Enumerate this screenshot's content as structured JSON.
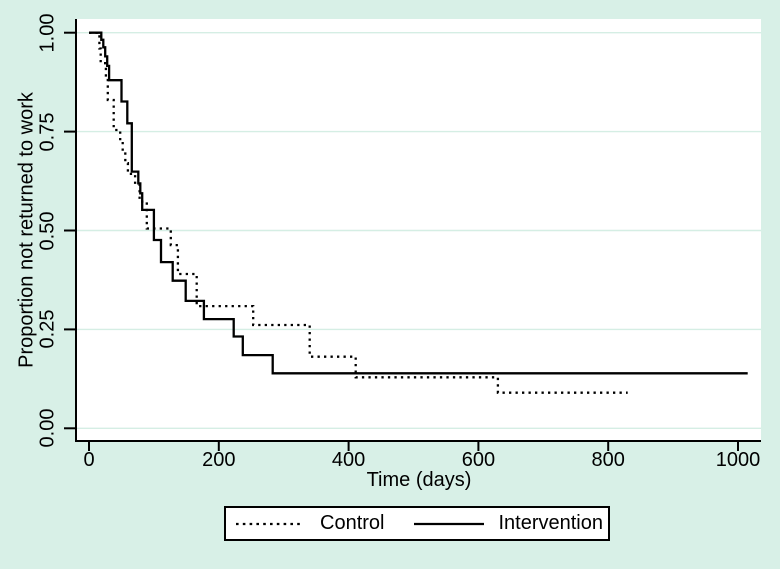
{
  "figure": {
    "background_color": "#d8f0e7",
    "plot_background_color": "#ffffff",
    "grid_color": "#d5eee4",
    "axis_color": "#000000",
    "curve_color": "#000000"
  },
  "chart_data": {
    "type": "line",
    "subtype": "kaplan-meier-step",
    "title": "",
    "xlabel": "Time (days)",
    "ylabel": "Proportion not returned to work",
    "xlim": [
      0,
      1035
    ],
    "ylim": [
      0,
      1.04
    ],
    "grid": "horizontal",
    "legend_position": "bottom-outside",
    "xticks": {
      "values": [
        0,
        200,
        400,
        600,
        800,
        1000
      ],
      "labels": [
        "0",
        "200",
        "400",
        "600",
        "800",
        "1000"
      ]
    },
    "yticks": {
      "values": [
        0,
        0.25,
        0.5,
        0.75,
        1
      ],
      "labels": [
        "0.00",
        "0.25",
        "0.50",
        "0.75",
        "1.00"
      ]
    },
    "series": [
      {
        "name": "Control",
        "line_style": "dotted",
        "points": [
          [
            0,
            1.0
          ],
          [
            16,
            0.96
          ],
          [
            18,
            0.923
          ],
          [
            26,
            0.885
          ],
          [
            29,
            0.83
          ],
          [
            38,
            0.754
          ],
          [
            48,
            0.727
          ],
          [
            52,
            0.7
          ],
          [
            56,
            0.67
          ],
          [
            60,
            0.643
          ],
          [
            71,
            0.617
          ],
          [
            78,
            0.573
          ],
          [
            89,
            0.505
          ],
          [
            126,
            0.463
          ],
          [
            137,
            0.39
          ],
          [
            166,
            0.309
          ],
          [
            253,
            0.261
          ],
          [
            340,
            0.181
          ],
          [
            411,
            0.129
          ],
          [
            630,
            0.09
          ]
        ],
        "end_time": 830
      },
      {
        "name": "Intervention",
        "line_style": "solid",
        "points": [
          [
            0,
            1.0
          ],
          [
            19,
            0.982
          ],
          [
            22,
            0.963
          ],
          [
            25,
            0.94
          ],
          [
            28,
            0.916
          ],
          [
            31,
            0.88
          ],
          [
            50,
            0.826
          ],
          [
            59,
            0.771
          ],
          [
            66,
            0.649
          ],
          [
            76,
            0.619
          ],
          [
            79,
            0.594
          ],
          [
            82,
            0.552
          ],
          [
            100,
            0.476
          ],
          [
            111,
            0.42
          ],
          [
            129,
            0.373
          ],
          [
            149,
            0.322
          ],
          [
            177,
            0.276
          ],
          [
            223,
            0.232
          ],
          [
            237,
            0.185
          ],
          [
            283,
            0.139
          ]
        ],
        "end_time": 1015
      }
    ]
  }
}
